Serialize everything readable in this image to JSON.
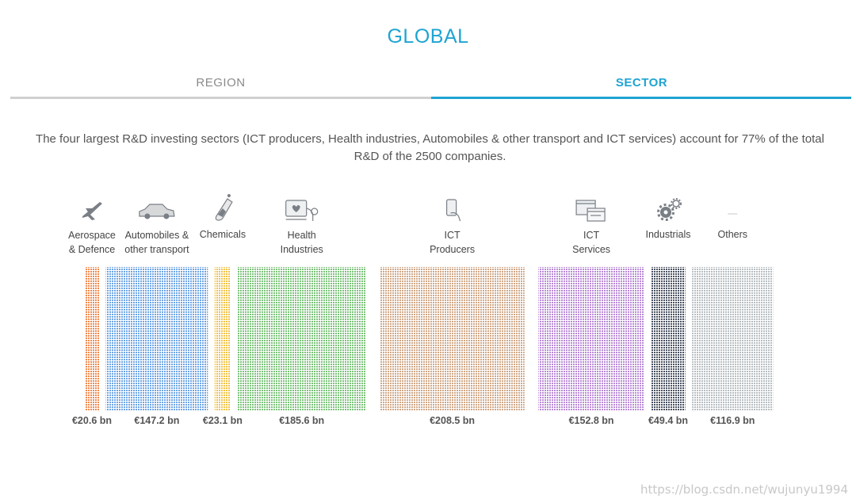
{
  "header": {
    "title": "GLOBAL"
  },
  "tabs": [
    {
      "label": "REGION",
      "active": false
    },
    {
      "label": "SECTOR",
      "active": true
    }
  ],
  "description": "The four largest R&D investing sectors (ICT producers, Health industries, Automobiles & other transport and ICT services) account for 77% of the total R&D of the 2500 companies.",
  "colors": {
    "accent": "#1ea4d2",
    "tab_inactive": "#d0d0d0"
  },
  "chart_data": {
    "type": "bar",
    "unit": "€ bn",
    "categories": [
      "Aerospace & Defence",
      "Automobiles & other transport",
      "Chemicals",
      "Health Industries",
      "ICT Producers",
      "ICT Services",
      "Industrials",
      "Others"
    ],
    "series": [
      {
        "name": "",
        "values": [
          20.6,
          147.2,
          23.1,
          185.6,
          208.5,
          152.8,
          49.4,
          116.9
        ]
      }
    ],
    "sectors": [
      {
        "label_lines": [
          "Aerospace",
          "& Defence"
        ],
        "value": 20.6,
        "value_label": "€20.6 bn",
        "color": "#f08a50",
        "icon": "airplane-icon"
      },
      {
        "label_lines": [
          "Automobiles &",
          "other transport"
        ],
        "value": 147.2,
        "value_label": "€147.2 bn",
        "color": "#6fa5e4",
        "icon": "car-icon"
      },
      {
        "label_lines": [
          "Chemicals"
        ],
        "value": 23.1,
        "value_label": "€23.1 bn",
        "color": "#f2c34c",
        "icon": "test-tube-icon"
      },
      {
        "label_lines": [
          "Health",
          "Industries"
        ],
        "value": 185.6,
        "value_label": "€185.6 bn",
        "color": "#7cc27a",
        "icon": "health-monitor-icon"
      },
      {
        "label_lines": [
          "ICT",
          "Producers"
        ],
        "value": 208.5,
        "value_label": "€208.5 bn",
        "color": "#d0a888",
        "icon": "phone-hand-icon"
      },
      {
        "label_lines": [
          "ICT",
          "Services"
        ],
        "value": 152.8,
        "value_label": "€152.8 bn",
        "color": "#b98ad6",
        "icon": "browser-windows-icon"
      },
      {
        "label_lines": [
          "Industrials"
        ],
        "value": 49.4,
        "value_label": "€49.4 bn",
        "color": "#4a5160",
        "icon": "gears-icon"
      },
      {
        "label_lines": [
          "Others"
        ],
        "value": 116.9,
        "value_label": "€116.9 bn",
        "color": "#b8bec2",
        "icon": "none"
      }
    ]
  },
  "watermark": "https://blog.csdn.net/wujunyu1994"
}
